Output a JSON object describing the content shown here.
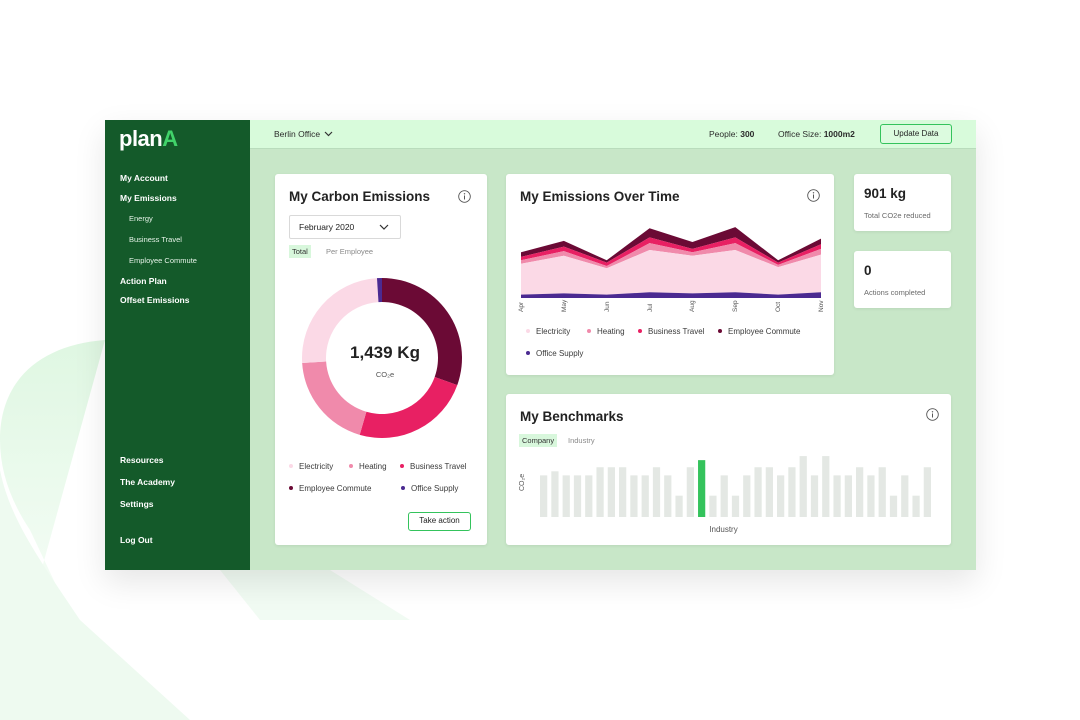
{
  "brand": {
    "name_part1": "plan",
    "name_part2": "A"
  },
  "sidebar": {
    "items": [
      {
        "label": "My Account"
      },
      {
        "label": "My Emissions"
      },
      {
        "label": "Energy"
      },
      {
        "label": "Business Travel"
      },
      {
        "label": "Employee Commute"
      },
      {
        "label": "Action Plan"
      },
      {
        "label": "Offset Emissions"
      },
      {
        "label": "Resources"
      },
      {
        "label": "The Academy"
      },
      {
        "label": "Settings"
      },
      {
        "label": "Log Out"
      }
    ]
  },
  "topbar": {
    "office": "Berlin Office",
    "people_label": "People:",
    "people_value": "300",
    "office_size_label": "Office Size:",
    "office_size_value": "1000m2",
    "update_button": "Update Data"
  },
  "carbon_card": {
    "title": "My Carbon Emissions",
    "period": "February 2020",
    "toggle_total": "Total",
    "toggle_per_employee": "Per Employee",
    "total_value": "1,439 Kg",
    "unit": "CO₂e",
    "action_button": "Take action"
  },
  "emissions_over_time_card": {
    "title": "My Emissions Over Time"
  },
  "kpis": [
    {
      "value": "901 kg",
      "label": "Total CO2e reduced"
    },
    {
      "value": "0",
      "label": "Actions completed"
    }
  ],
  "benchmarks_card": {
    "title": "My Benchmarks",
    "toggle_company": "Company",
    "toggle_industry": "Industry"
  },
  "colors": {
    "electricity": "#fbd9e6",
    "heating": "#f08aab",
    "business_travel": "#e82063",
    "employee_commute": "#6b0a35",
    "office_supply": "#4b2a91",
    "brand_green": "#145a2a",
    "accent_green": "#34c35c"
  },
  "chart_data": [
    {
      "type": "pie",
      "title": "My Carbon Emissions",
      "center_value": "1,439 Kg",
      "center_unit": "CO₂e",
      "categories": [
        "Electricity",
        "Heating",
        "Business Travel",
        "Employee Commute",
        "Office Supply"
      ],
      "values": [
        25,
        19.5,
        24,
        30.5,
        1
      ],
      "unit": "percent of total"
    },
    {
      "type": "area",
      "title": "My Emissions Over Time",
      "x": [
        "Apr",
        "May",
        "Jun",
        "Jul",
        "Aug",
        "Sep",
        "Oct",
        "Nov"
      ],
      "series": [
        {
          "name": "Office Supply",
          "values": [
            3,
            4,
            3,
            5,
            4,
            5,
            3,
            5
          ]
        },
        {
          "name": "Electricity",
          "values": [
            27,
            33,
            23,
            37,
            33,
            37,
            24,
            33
          ]
        },
        {
          "name": "Heating",
          "values": [
            3,
            4,
            2,
            6,
            3,
            6,
            2,
            5
          ]
        },
        {
          "name": "Business Travel",
          "values": [
            3,
            4,
            3,
            5,
            3,
            5,
            2,
            4
          ]
        },
        {
          "name": "Employee Commute",
          "values": [
            4,
            5,
            2,
            8,
            6,
            9,
            2,
            5
          ]
        }
      ],
      "stacked": true,
      "xlabel": "",
      "ylabel": ""
    },
    {
      "type": "bar",
      "title": "My Benchmarks",
      "xlabel": "Industry",
      "ylabel": "CO₂e",
      "highlight_index": 14,
      "values": [
        41,
        45,
        41,
        41,
        41,
        49,
        49,
        49,
        41,
        41,
        49,
        41,
        21,
        49,
        56,
        21,
        41,
        21,
        41,
        49,
        49,
        41,
        49,
        60,
        41,
        60,
        41,
        41,
        49,
        41,
        49,
        21,
        41,
        21,
        49
      ],
      "ylim": [
        0,
        65
      ]
    }
  ]
}
